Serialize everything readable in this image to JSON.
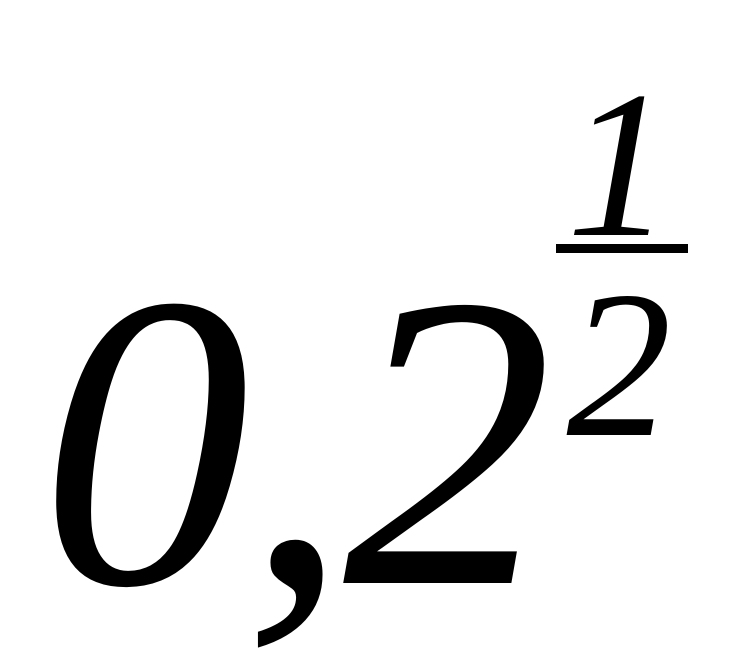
{
  "expression": {
    "base": "0,2",
    "exponent": {
      "numerator": "1",
      "denominator": "2"
    }
  }
}
